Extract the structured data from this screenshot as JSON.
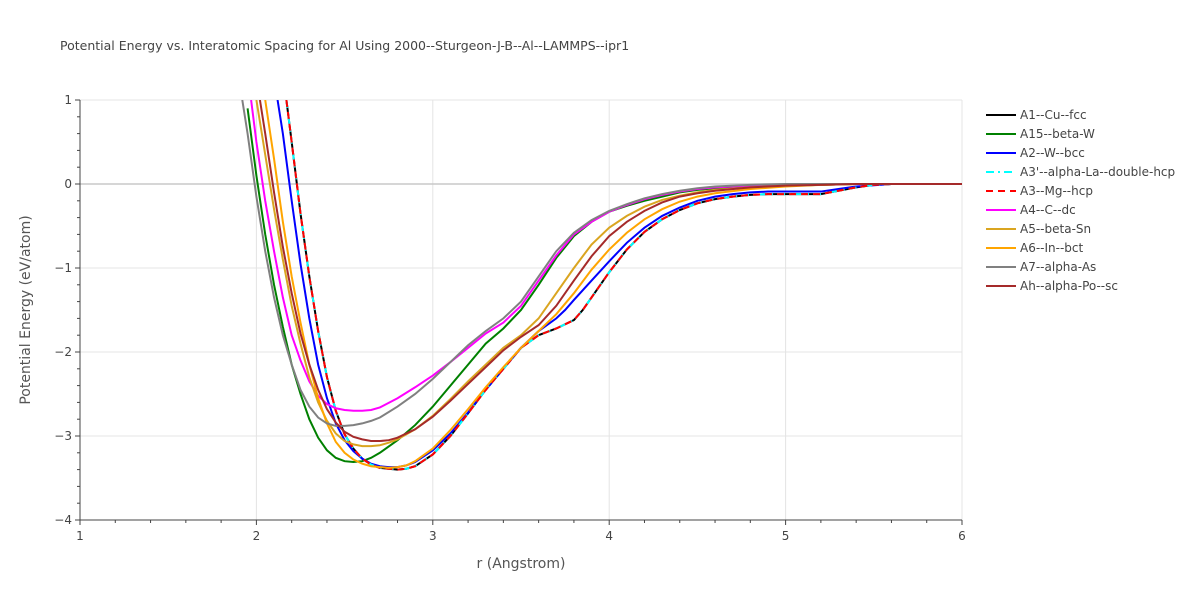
{
  "chart_data": {
    "type": "line",
    "title": "Potential Energy vs. Interatomic Spacing for Al Using 2000--Sturgeon-J-B--Al--LAMMPS--ipr1",
    "xlabel": "r (Angstrom)",
    "ylabel": "Potential Energy (eV/atom)",
    "xlim": [
      1,
      6
    ],
    "ylim": [
      -4,
      1
    ],
    "xticks": [
      1,
      2,
      3,
      4,
      5,
      6
    ],
    "yticks": [
      1,
      0,
      -1,
      -2,
      -3,
      -4
    ],
    "grid": true,
    "legend_position": "right",
    "series": [
      {
        "name": "A1--Cu--fcc",
        "color": "#000000",
        "dash": "solid",
        "x": [
          2.17,
          2.2,
          2.25,
          2.3,
          2.35,
          2.4,
          2.45,
          2.5,
          2.55,
          2.6,
          2.65,
          2.7,
          2.75,
          2.8,
          2.85,
          2.9,
          3.0,
          3.1,
          3.2,
          3.3,
          3.4,
          3.5,
          3.6,
          3.7,
          3.8,
          3.85,
          3.9,
          3.95,
          4.0,
          4.1,
          4.2,
          4.3,
          4.4,
          4.5,
          4.6,
          4.7,
          4.8,
          4.9,
          5.0,
          5.1,
          5.2,
          5.3,
          5.4,
          5.5,
          5.6,
          5.8,
          6.0
        ],
        "y": [
          1.0,
          0.5,
          -0.35,
          -1.1,
          -1.75,
          -2.3,
          -2.7,
          -2.98,
          -3.15,
          -3.27,
          -3.34,
          -3.38,
          -3.39,
          -3.4,
          -3.39,
          -3.36,
          -3.22,
          -3.0,
          -2.73,
          -2.45,
          -2.2,
          -1.95,
          -1.8,
          -1.72,
          -1.62,
          -1.5,
          -1.35,
          -1.2,
          -1.05,
          -0.78,
          -0.57,
          -0.42,
          -0.31,
          -0.23,
          -0.18,
          -0.15,
          -0.13,
          -0.12,
          -0.12,
          -0.12,
          -0.12,
          -0.08,
          -0.04,
          -0.01,
          0.0,
          0.0,
          0.0
        ]
      },
      {
        "name": "A15--beta-W",
        "color": "#008000",
        "dash": "solid",
        "x": [
          1.95,
          2.0,
          2.05,
          2.1,
          2.15,
          2.2,
          2.25,
          2.3,
          2.35,
          2.4,
          2.45,
          2.5,
          2.55,
          2.6,
          2.65,
          2.7,
          2.8,
          2.9,
          3.0,
          3.1,
          3.2,
          3.3,
          3.4,
          3.5,
          3.6,
          3.7,
          3.8,
          3.9,
          4.0,
          4.1,
          4.2,
          4.3,
          4.4,
          4.5,
          4.6,
          4.8,
          5.0,
          5.2,
          5.4,
          5.6,
          6.0
        ],
        "y": [
          0.9,
          0.1,
          -0.6,
          -1.2,
          -1.7,
          -2.15,
          -2.5,
          -2.8,
          -3.02,
          -3.17,
          -3.26,
          -3.3,
          -3.31,
          -3.3,
          -3.26,
          -3.2,
          -3.05,
          -2.87,
          -2.65,
          -2.4,
          -2.15,
          -1.9,
          -1.72,
          -1.5,
          -1.2,
          -0.88,
          -0.62,
          -0.45,
          -0.33,
          -0.26,
          -0.2,
          -0.15,
          -0.1,
          -0.07,
          -0.05,
          -0.03,
          -0.02,
          -0.01,
          0.0,
          0.0,
          0.0
        ]
      },
      {
        "name": "A2--W--bcc",
        "color": "#0000ff",
        "dash": "solid",
        "x": [
          2.12,
          2.15,
          2.2,
          2.25,
          2.3,
          2.35,
          2.4,
          2.45,
          2.5,
          2.55,
          2.6,
          2.65,
          2.7,
          2.75,
          2.8,
          2.85,
          2.9,
          3.0,
          3.1,
          3.2,
          3.3,
          3.4,
          3.5,
          3.6,
          3.7,
          3.75,
          3.8,
          3.9,
          4.0,
          4.1,
          4.2,
          4.3,
          4.4,
          4.5,
          4.6,
          4.7,
          4.8,
          4.9,
          5.0,
          5.1,
          5.2,
          5.3,
          5.4,
          5.6,
          6.0
        ],
        "y": [
          1.0,
          0.6,
          -0.2,
          -0.95,
          -1.6,
          -2.15,
          -2.55,
          -2.85,
          -3.05,
          -3.18,
          -3.27,
          -3.33,
          -3.36,
          -3.37,
          -3.37,
          -3.35,
          -3.31,
          -3.17,
          -2.97,
          -2.72,
          -2.45,
          -2.2,
          -1.95,
          -1.75,
          -1.6,
          -1.5,
          -1.38,
          -1.15,
          -0.92,
          -0.7,
          -0.52,
          -0.38,
          -0.28,
          -0.2,
          -0.15,
          -0.12,
          -0.1,
          -0.09,
          -0.09,
          -0.09,
          -0.09,
          -0.06,
          -0.03,
          0.0,
          0.0
        ]
      },
      {
        "name": "A3'--alpha-La--double-hcp",
        "color": "#00ffff",
        "dash": "dashdot",
        "x": [
          2.17,
          2.2,
          2.25,
          2.3,
          2.35,
          2.4,
          2.45,
          2.5,
          2.55,
          2.6,
          2.65,
          2.7,
          2.75,
          2.8,
          2.85,
          2.9,
          3.0,
          3.1,
          3.2,
          3.3,
          3.4,
          3.5,
          3.6,
          3.7,
          3.8,
          3.85,
          3.9,
          3.95,
          4.0,
          4.1,
          4.2,
          4.3,
          4.4,
          4.5,
          4.6,
          4.7,
          4.8,
          4.9,
          5.0,
          5.1,
          5.2,
          5.3,
          5.4,
          5.5,
          5.6,
          5.8,
          6.0
        ],
        "y": [
          1.0,
          0.5,
          -0.35,
          -1.1,
          -1.75,
          -2.3,
          -2.7,
          -2.98,
          -3.15,
          -3.27,
          -3.34,
          -3.38,
          -3.39,
          -3.4,
          -3.39,
          -3.36,
          -3.22,
          -3.0,
          -2.73,
          -2.45,
          -2.2,
          -1.95,
          -1.8,
          -1.72,
          -1.62,
          -1.5,
          -1.35,
          -1.2,
          -1.05,
          -0.78,
          -0.57,
          -0.42,
          -0.31,
          -0.23,
          -0.18,
          -0.15,
          -0.13,
          -0.12,
          -0.12,
          -0.12,
          -0.12,
          -0.08,
          -0.04,
          -0.01,
          0.0,
          0.0,
          0.0
        ]
      },
      {
        "name": "A3--Mg--hcp",
        "color": "#ff0000",
        "dash": "dash",
        "x": [
          2.17,
          2.2,
          2.25,
          2.3,
          2.35,
          2.4,
          2.45,
          2.5,
          2.55,
          2.6,
          2.65,
          2.7,
          2.75,
          2.8,
          2.85,
          2.9,
          3.0,
          3.1,
          3.2,
          3.3,
          3.4,
          3.5,
          3.6,
          3.7,
          3.8,
          3.85,
          3.9,
          3.95,
          4.0,
          4.1,
          4.2,
          4.3,
          4.4,
          4.5,
          4.6,
          4.7,
          4.8,
          4.9,
          5.0,
          5.1,
          5.2,
          5.3,
          5.4,
          5.5,
          5.6,
          5.8,
          6.0
        ],
        "y": [
          1.0,
          0.5,
          -0.35,
          -1.1,
          -1.75,
          -2.3,
          -2.7,
          -2.98,
          -3.15,
          -3.27,
          -3.34,
          -3.38,
          -3.39,
          -3.4,
          -3.39,
          -3.36,
          -3.22,
          -3.0,
          -2.73,
          -2.45,
          -2.2,
          -1.95,
          -1.8,
          -1.72,
          -1.62,
          -1.5,
          -1.35,
          -1.2,
          -1.05,
          -0.78,
          -0.57,
          -0.42,
          -0.31,
          -0.23,
          -0.18,
          -0.15,
          -0.13,
          -0.12,
          -0.12,
          -0.12,
          -0.12,
          -0.08,
          -0.04,
          -0.01,
          0.0,
          0.0,
          0.0
        ]
      },
      {
        "name": "A4--C--dc",
        "color": "#ff00ff",
        "dash": "solid",
        "x": [
          1.97,
          2.0,
          2.05,
          2.1,
          2.15,
          2.2,
          2.25,
          2.3,
          2.35,
          2.4,
          2.45,
          2.5,
          2.55,
          2.6,
          2.65,
          2.7,
          2.8,
          2.9,
          3.0,
          3.1,
          3.2,
          3.3,
          3.4,
          3.5,
          3.6,
          3.7,
          3.8,
          3.9,
          4.0,
          4.1,
          4.2,
          4.3,
          4.4,
          4.5,
          4.6,
          4.8,
          5.0,
          5.2,
          5.4,
          5.6,
          6.0
        ],
        "y": [
          1.0,
          0.5,
          -0.2,
          -0.8,
          -1.35,
          -1.8,
          -2.1,
          -2.35,
          -2.52,
          -2.62,
          -2.67,
          -2.69,
          -2.7,
          -2.7,
          -2.69,
          -2.66,
          -2.55,
          -2.42,
          -2.28,
          -2.12,
          -1.95,
          -1.78,
          -1.65,
          -1.45,
          -1.15,
          -0.85,
          -0.6,
          -0.45,
          -0.33,
          -0.25,
          -0.18,
          -0.13,
          -0.09,
          -0.06,
          -0.04,
          -0.02,
          -0.01,
          0.0,
          0.0,
          0.0,
          0.0
        ]
      },
      {
        "name": "A5--beta-Sn",
        "color": "#daa520",
        "dash": "solid",
        "x": [
          2.0,
          2.05,
          2.1,
          2.15,
          2.2,
          2.25,
          2.3,
          2.35,
          2.4,
          2.45,
          2.5,
          2.55,
          2.6,
          2.65,
          2.7,
          2.75,
          2.8,
          2.9,
          3.0,
          3.1,
          3.2,
          3.3,
          3.4,
          3.5,
          3.6,
          3.7,
          3.8,
          3.9,
          4.0,
          4.1,
          4.2,
          4.3,
          4.4,
          4.5,
          4.6,
          4.8,
          5.0,
          5.2,
          5.4,
          5.6,
          6.0
        ],
        "y": [
          1.0,
          0.35,
          -0.3,
          -0.9,
          -1.45,
          -1.9,
          -2.3,
          -2.6,
          -2.82,
          -2.97,
          -3.06,
          -3.1,
          -3.12,
          -3.12,
          -3.11,
          -3.08,
          -3.04,
          -2.92,
          -2.76,
          -2.56,
          -2.35,
          -2.15,
          -1.95,
          -1.8,
          -1.6,
          -1.3,
          -1.0,
          -0.72,
          -0.52,
          -0.38,
          -0.27,
          -0.19,
          -0.14,
          -0.1,
          -0.07,
          -0.04,
          -0.02,
          -0.01,
          0.0,
          0.0,
          0.0
        ]
      },
      {
        "name": "A6--In--bct",
        "color": "#ffa500",
        "dash": "solid",
        "x": [
          2.05,
          2.1,
          2.15,
          2.2,
          2.25,
          2.3,
          2.35,
          2.4,
          2.45,
          2.5,
          2.55,
          2.6,
          2.65,
          2.7,
          2.75,
          2.8,
          2.85,
          2.9,
          3.0,
          3.1,
          3.2,
          3.3,
          3.4,
          3.5,
          3.6,
          3.7,
          3.8,
          3.9,
          4.0,
          4.1,
          4.2,
          4.3,
          4.4,
          4.5,
          4.6,
          4.8,
          5.0,
          5.2,
          5.4,
          5.6,
          6.0
        ],
        "y": [
          1.0,
          0.3,
          -0.45,
          -1.1,
          -1.65,
          -2.15,
          -2.55,
          -2.85,
          -3.07,
          -3.2,
          -3.28,
          -3.33,
          -3.36,
          -3.37,
          -3.38,
          -3.37,
          -3.35,
          -3.3,
          -3.15,
          -2.93,
          -2.68,
          -2.42,
          -2.18,
          -1.95,
          -1.75,
          -1.55,
          -1.3,
          -1.02,
          -0.78,
          -0.58,
          -0.42,
          -0.3,
          -0.21,
          -0.15,
          -0.11,
          -0.06,
          -0.03,
          -0.01,
          0.0,
          0.0,
          0.0
        ]
      },
      {
        "name": "A7--alpha-As",
        "color": "#808080",
        "dash": "solid",
        "x": [
          1.92,
          1.95,
          2.0,
          2.05,
          2.1,
          2.15,
          2.2,
          2.25,
          2.3,
          2.35,
          2.4,
          2.45,
          2.5,
          2.55,
          2.6,
          2.65,
          2.7,
          2.8,
          2.9,
          3.0,
          3.1,
          3.2,
          3.3,
          3.4,
          3.5,
          3.6,
          3.7,
          3.8,
          3.9,
          4.0,
          4.1,
          4.2,
          4.3,
          4.4,
          4.5,
          4.6,
          4.8,
          5.0,
          5.2,
          5.4,
          5.6,
          6.0
        ],
        "y": [
          1.0,
          0.6,
          -0.15,
          -0.8,
          -1.35,
          -1.8,
          -2.15,
          -2.45,
          -2.65,
          -2.78,
          -2.85,
          -2.88,
          -2.88,
          -2.87,
          -2.85,
          -2.82,
          -2.78,
          -2.65,
          -2.5,
          -2.32,
          -2.12,
          -1.92,
          -1.75,
          -1.6,
          -1.4,
          -1.1,
          -0.8,
          -0.58,
          -0.43,
          -0.32,
          -0.24,
          -0.17,
          -0.12,
          -0.08,
          -0.05,
          -0.03,
          -0.01,
          0.0,
          0.0,
          0.0,
          0.0,
          0.0
        ]
      },
      {
        "name": "Ah--alpha-Po--sc",
        "color": "#a52a2a",
        "dash": "solid",
        "x": [
          2.02,
          2.05,
          2.1,
          2.15,
          2.2,
          2.25,
          2.3,
          2.35,
          2.4,
          2.45,
          2.5,
          2.55,
          2.6,
          2.65,
          2.7,
          2.75,
          2.8,
          2.9,
          3.0,
          3.1,
          3.2,
          3.3,
          3.4,
          3.5,
          3.6,
          3.7,
          3.8,
          3.9,
          4.0,
          4.1,
          4.2,
          4.3,
          4.4,
          4.5,
          4.6,
          4.8,
          5.0,
          5.2,
          5.4,
          5.6,
          6.0
        ],
        "y": [
          1.0,
          0.6,
          -0.1,
          -0.75,
          -1.3,
          -1.78,
          -2.15,
          -2.45,
          -2.68,
          -2.84,
          -2.95,
          -3.01,
          -3.04,
          -3.06,
          -3.06,
          -3.05,
          -3.02,
          -2.92,
          -2.77,
          -2.58,
          -2.38,
          -2.18,
          -1.98,
          -1.82,
          -1.68,
          -1.45,
          -1.15,
          -0.86,
          -0.62,
          -0.45,
          -0.32,
          -0.22,
          -0.15,
          -0.11,
          -0.08,
          -0.04,
          -0.02,
          -0.01,
          0.0,
          0.0,
          0.0
        ]
      }
    ]
  }
}
